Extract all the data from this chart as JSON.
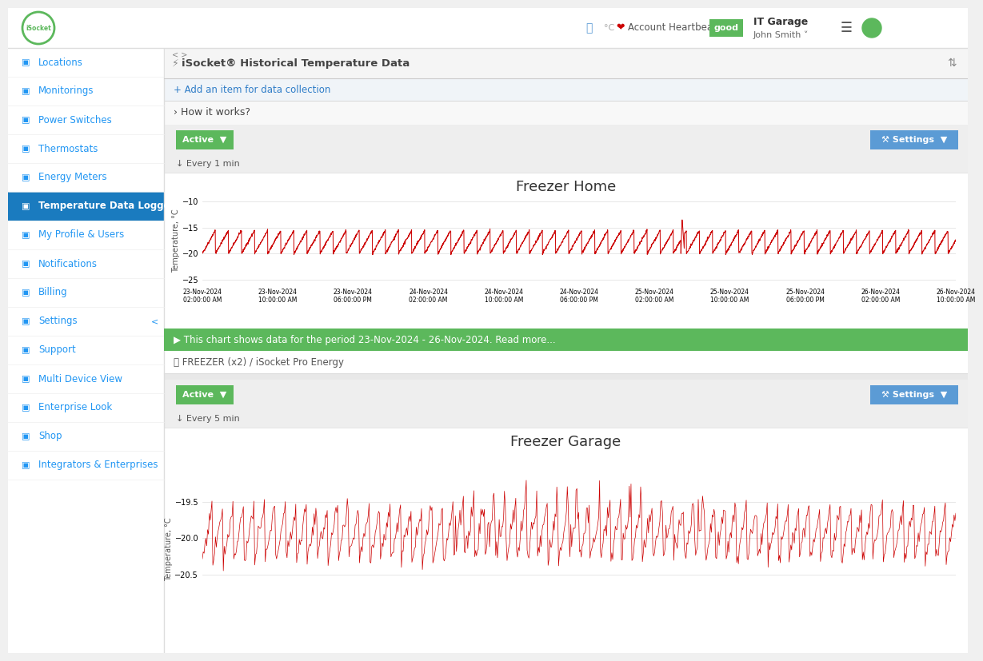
{
  "bg_color": "#f0f0f0",
  "sidebar_bg": "#ffffff",
  "sidebar_items": [
    "Locations",
    "Monitorings",
    "Power Switches",
    "Thermostats",
    "Energy Meters",
    "Temperature Data Loggers",
    "My Profile & Users",
    "Notifications",
    "Billing",
    "Settings",
    "Support",
    "Multi Device View",
    "Enterprise Look",
    "Shop",
    "Integrators & Enterprises"
  ],
  "sidebar_active_item": "Temperature Data Loggers",
  "sidebar_active_bg": "#1a7bbf",
  "sidebar_active_fg": "#ffffff",
  "sidebar_fg": "#2196f3",
  "header_title": "iSocket® Historical Temperature Data",
  "header_heartbeat": "Account Heartbeat",
  "header_good": "good",
  "add_item_text": "+ Add an item for data collection",
  "how_it_works": "How it works?",
  "chart1_title": "Freezer Home",
  "chart1_ylabel": "Temperature, °C",
  "chart1_ylim": [
    -26,
    -9
  ],
  "chart1_yticks": [
    -25,
    -20,
    -15,
    -10
  ],
  "chart1_xtick_labels": [
    "23-Nov-2024\n02:00:00 AM",
    "23-Nov-2024\n10:00:00 AM",
    "23-Nov-2024\n06:00:00 PM",
    "24-Nov-2024\n02:00:00 AM",
    "24-Nov-2024\n10:00:00 AM",
    "24-Nov-2024\n06:00:00 PM",
    "25-Nov-2024\n02:00:00 AM",
    "25-Nov-2024\n10:00:00 AM",
    "25-Nov-2024\n06:00:00 PM",
    "26-Nov-2024\n02:00:00 AM",
    "26-Nov-2024\n10:00:00 AM"
  ],
  "chart1_every_text": "Every 1 min",
  "chart1_info_text": "▶ This chart shows data for the period 23-Nov-2024 - 26-Nov-2024. Read more...",
  "chart1_device_text": "FREEZER (x2) / iSocket Pro Energy",
  "chart1_line_color": "#cc0000",
  "chart2_title": "Freezer Garage",
  "chart2_ylabel": "Temperature, °C",
  "chart2_ylim": [
    -21.5,
    -18.8
  ],
  "chart2_yticks": [
    -20.5,
    -20.0,
    -19.5
  ],
  "chart2_every_text": "Every 5 min",
  "chart2_line_color": "#cc0000",
  "active_btn_bg": "#5cb85c",
  "settings_btn_bg": "#5b9bd5",
  "green_bar_bg": "#5cb85c",
  "grid_color": "#dddddd",
  "logo_green": "#5cb85c",
  "good_badge_bg": "#5cb85c"
}
